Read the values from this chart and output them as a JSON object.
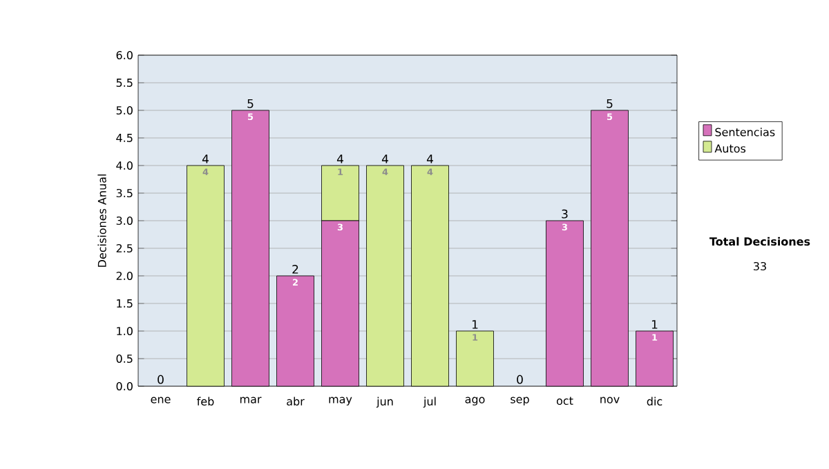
{
  "chart_data": {
    "type": "bar",
    "stacked": true,
    "ylabel": "Decisiones Anual",
    "categories": [
      "ene",
      "feb",
      "mar",
      "abr",
      "may",
      "jun",
      "jul",
      "ago",
      "sep",
      "oct",
      "nov",
      "dic"
    ],
    "series": [
      {
        "name": "Sentencias",
        "color": "#d672bb",
        "values": [
          0,
          0,
          5,
          2,
          3,
          0,
          0,
          0,
          0,
          3,
          5,
          1
        ],
        "value_labels": [
          null,
          null,
          "5",
          "2",
          "3",
          null,
          null,
          null,
          null,
          "3",
          "5",
          "1"
        ]
      },
      {
        "name": "Autos",
        "color": "#d4ea92",
        "values": [
          0,
          4,
          0,
          0,
          1,
          4,
          4,
          1,
          0,
          0,
          0,
          0
        ],
        "value_labels": [
          null,
          "4",
          null,
          null,
          "1",
          "4",
          "4",
          "1",
          null,
          null,
          null,
          null
        ]
      }
    ],
    "totals": [
      "0",
      "4",
      "5",
      "2",
      "4",
      "4",
      "4",
      "1",
      "0",
      "3",
      "5",
      "1"
    ],
    "ylim": [
      0,
      6
    ],
    "yticks": [
      {
        "value": 0,
        "label": "0.0"
      },
      {
        "value": 0.5,
        "label": "0.5"
      },
      {
        "value": 1,
        "label": "1.0"
      },
      {
        "value": 1.5,
        "label": "1.5"
      },
      {
        "value": 2,
        "label": "2.0"
      },
      {
        "value": 2.5,
        "label": "2.5"
      },
      {
        "value": 3,
        "label": "3.0"
      },
      {
        "value": 3.5,
        "label": "3.5"
      },
      {
        "value": 4,
        "label": "4.0"
      },
      {
        "value": 4.5,
        "label": "4.5"
      },
      {
        "value": 5,
        "label": "5.0"
      },
      {
        "value": 5.5,
        "label": "5.5"
      },
      {
        "value": 6,
        "label": "6.0"
      }
    ],
    "grid": "y",
    "legend": "right",
    "annotations": [
      "Total Decisiones",
      "33"
    ]
  }
}
